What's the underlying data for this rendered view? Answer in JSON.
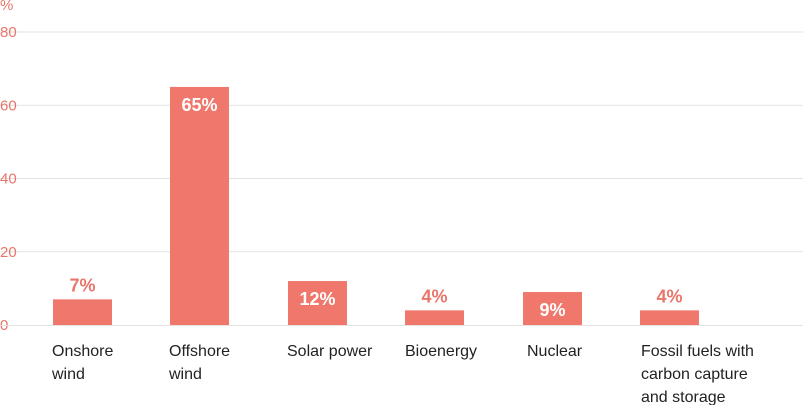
{
  "chart_data": {
    "type": "bar",
    "ylabel": "%",
    "ylim": [
      0,
      80
    ],
    "yticks": [
      0,
      20,
      40,
      60,
      80
    ],
    "categories": [
      [
        "Onshore",
        "wind"
      ],
      [
        "Offshore",
        "wind"
      ],
      [
        "Solar power"
      ],
      [
        "Bioenergy"
      ],
      [
        "Nuclear"
      ],
      [
        "Fossil fuels with",
        "carbon capture",
        "and storage"
      ]
    ],
    "values": [
      7,
      65,
      12,
      4,
      9,
      4
    ],
    "data_labels": [
      "7%",
      "65%",
      "12%",
      "4%",
      "9%",
      "4%"
    ],
    "grid": true
  },
  "colors": {
    "bar": "#ef776b",
    "tick": "#e8766b",
    "grid": "#e6e2e2",
    "label_inside": "#ffffff",
    "label_outside": "#e8766b",
    "category": "#222222"
  }
}
